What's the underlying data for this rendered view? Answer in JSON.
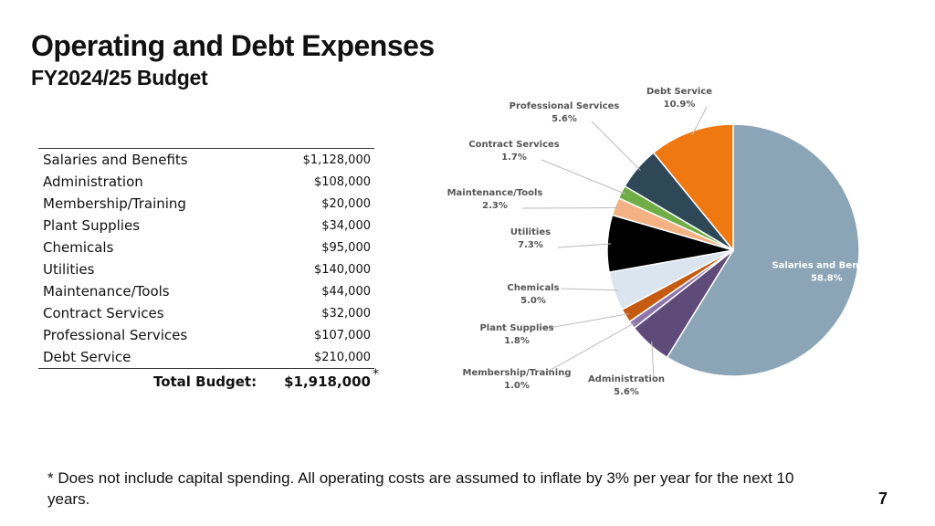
{
  "slide": {
    "title": "Operating and Debt Expenses",
    "subtitle": "FY2024/25 Budget",
    "footnote": "* Does not include capital spending. All operating costs are assumed to inflate by 3% per year for the next 10 years.",
    "page_number": "7"
  },
  "budget_table": {
    "rows": [
      {
        "label": "Salaries and Benefits",
        "amount": "$1,128,000"
      },
      {
        "label": "Administration",
        "amount": "$108,000"
      },
      {
        "label": "Membership/Training",
        "amount": "$20,000"
      },
      {
        "label": "Plant Supplies",
        "amount": "$34,000"
      },
      {
        "label": "Chemicals",
        "amount": "$95,000"
      },
      {
        "label": "Utilities",
        "amount": "$140,000"
      },
      {
        "label": "Maintenance/Tools",
        "amount": "$44,000"
      },
      {
        "label": "Contract Services",
        "amount": "$32,000"
      },
      {
        "label": "Professional Services",
        "amount": "$107,000"
      },
      {
        "label": "Debt Service",
        "amount": "$210,000"
      }
    ],
    "total_label": "Total Budget:",
    "total_value": "$1,918,000",
    "total_marker": "*"
  },
  "chart_data": {
    "type": "pie",
    "title": "",
    "slices": [
      {
        "name": "Salaries and Benefits",
        "value": 58.8,
        "label_value": "58.8%",
        "color": "#8ba5b7"
      },
      {
        "name": "Administration",
        "value": 5.6,
        "label_value": "5.6%",
        "color": "#5f4b7a"
      },
      {
        "name": "Membership/Training",
        "value": 1.0,
        "label_value": "1.0%",
        "color": "#8e76ad"
      },
      {
        "name": "Plant Supplies",
        "value": 1.8,
        "label_value": "1.8%",
        "color": "#c55a11"
      },
      {
        "name": "Chemicals",
        "value": 5.0,
        "label_value": "5.0%",
        "color": "#dae5ef"
      },
      {
        "name": "Utilities",
        "value": 7.3,
        "label_value": "7.3%",
        "color": "#000000"
      },
      {
        "name": "Maintenance/Tools",
        "value": 2.3,
        "label_value": "2.3%",
        "color": "#f4b183"
      },
      {
        "name": "Contract Services",
        "value": 1.7,
        "label_value": "1.7%",
        "color": "#70ad47"
      },
      {
        "name": "Professional Services",
        "value": 5.6,
        "label_value": "5.6%",
        "color": "#2f4858"
      },
      {
        "name": "Debt Service",
        "value": 10.9,
        "label_value": "10.9%",
        "color": "#f07810"
      }
    ]
  }
}
